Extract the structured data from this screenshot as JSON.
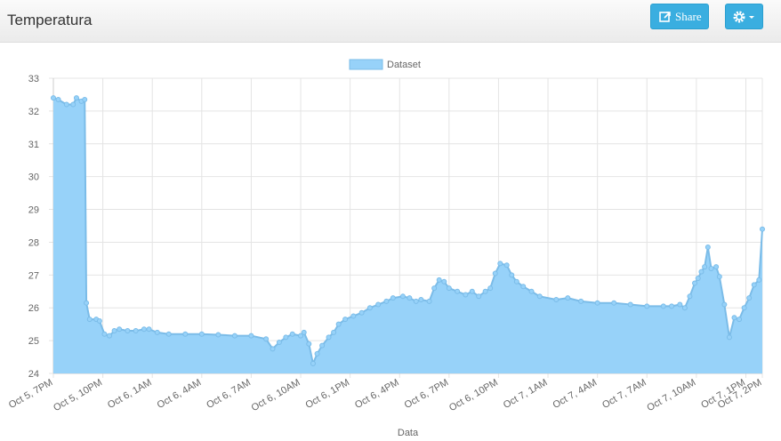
{
  "header": {
    "title": "Temperatura",
    "share": "Share"
  },
  "chart_data": {
    "type": "line",
    "x_label": "Data",
    "legend": "top",
    "grid": true,
    "xlim": [
      0,
      43
    ],
    "ylim": [
      24,
      33
    ],
    "yticks": [
      24,
      25,
      26,
      27,
      28,
      29,
      30,
      31,
      32,
      33
    ],
    "xticks": [
      {
        "value": 0,
        "label": "Oct 5, 7PM"
      },
      {
        "value": 3,
        "label": "Oct 5, 10PM"
      },
      {
        "value": 6,
        "label": "Oct 6, 1AM"
      },
      {
        "value": 9,
        "label": "Oct 6, 4AM"
      },
      {
        "value": 12,
        "label": "Oct 6, 7AM"
      },
      {
        "value": 15,
        "label": "Oct 6, 10AM"
      },
      {
        "value": 18,
        "label": "Oct 6, 1PM"
      },
      {
        "value": 21,
        "label": "Oct 6, 4PM"
      },
      {
        "value": 24,
        "label": "Oct 6, 7PM"
      },
      {
        "value": 27,
        "label": "Oct 6, 10PM"
      },
      {
        "value": 30,
        "label": "Oct 7, 1AM"
      },
      {
        "value": 33,
        "label": "Oct 7, 4AM"
      },
      {
        "value": 36,
        "label": "Oct 7, 7AM"
      },
      {
        "value": 39,
        "label": "Oct 7, 10AM"
      },
      {
        "value": 42,
        "label": "Oct 7, 1PM"
      },
      {
        "value": 43,
        "label": "Oct 7, 2PM"
      }
    ],
    "x": [
      0,
      0.3,
      0.8,
      1.2,
      1.4,
      1.7,
      1.9,
      2.0,
      2.2,
      2.6,
      2.8,
      3.1,
      3.4,
      3.7,
      4.0,
      4.5,
      5.0,
      5.5,
      5.8,
      6.3,
      7,
      8,
      9,
      10,
      11,
      12,
      12.9,
      13.3,
      13.7,
      14.1,
      14.5,
      15.0,
      15.2,
      15.5,
      15.75,
      16.0,
      16.3,
      16.7,
      17.0,
      17.3,
      17.7,
      18.2,
      18.7,
      19.2,
      19.7,
      20.2,
      20.6,
      21.2,
      21.6,
      22.0,
      22.3,
      22.8,
      23.1,
      23.4,
      23.7,
      24.0,
      24.5,
      25.0,
      25.4,
      25.8,
      26.2,
      26.5,
      26.8,
      27.1,
      27.5,
      27.8,
      28.1,
      28.5,
      29.0,
      29.5,
      30.5,
      31.2,
      32,
      33,
      34,
      35,
      36,
      37,
      37.5,
      38.0,
      38.3,
      38.6,
      38.9,
      39.1,
      39.3,
      39.5,
      39.7,
      39.9,
      40.2,
      40.4,
      40.7,
      41.0,
      41.3,
      41.6,
      41.9,
      42.2,
      42.5,
      42.8,
      43.0
    ],
    "series": [
      {
        "name": "Dataset",
        "color": "#97d2f9",
        "stroke": "#7bbce8",
        "values": [
          32.4,
          32.35,
          32.2,
          32.2,
          32.4,
          32.3,
          32.35,
          26.15,
          25.65,
          25.65,
          25.6,
          25.2,
          25.15,
          25.3,
          25.35,
          25.3,
          25.3,
          25.35,
          25.35,
          25.25,
          25.2,
          25.2,
          25.2,
          25.18,
          25.15,
          25.15,
          25.05,
          24.75,
          24.95,
          25.1,
          25.2,
          25.15,
          25.25,
          24.9,
          24.3,
          24.6,
          24.85,
          25.1,
          25.25,
          25.5,
          25.65,
          25.75,
          25.85,
          26.0,
          26.1,
          26.2,
          26.3,
          26.35,
          26.3,
          26.2,
          26.25,
          26.2,
          26.6,
          26.85,
          26.8,
          26.6,
          26.5,
          26.4,
          26.5,
          26.35,
          26.5,
          26.6,
          27.05,
          27.35,
          27.3,
          27.0,
          26.8,
          26.65,
          26.5,
          26.35,
          26.25,
          26.3,
          26.2,
          26.15,
          26.15,
          26.1,
          26.05,
          26.05,
          26.05,
          26.1,
          26.0,
          26.35,
          26.75,
          26.9,
          27.1,
          27.25,
          27.85,
          27.2,
          27.25,
          26.95,
          26.1,
          25.1,
          25.7,
          25.65,
          26.0,
          26.3,
          26.7,
          26.85,
          28.4
        ]
      }
    ]
  }
}
